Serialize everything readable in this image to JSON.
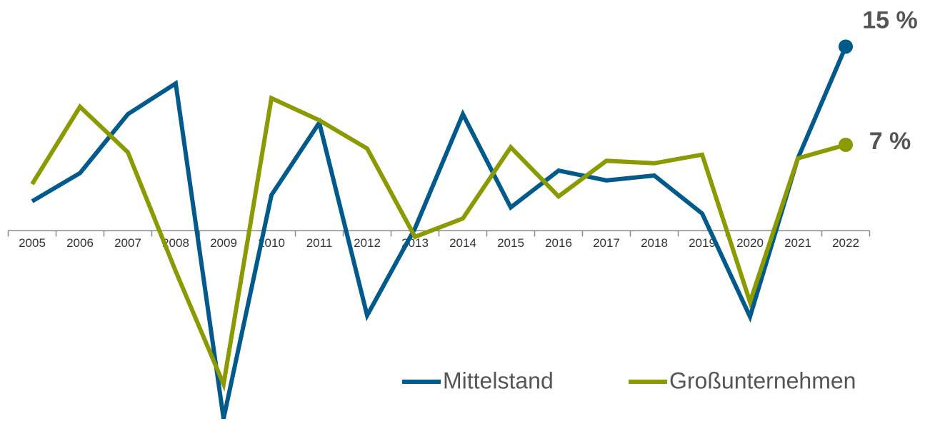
{
  "chart_data": {
    "type": "line",
    "categories": [
      "2005",
      "2006",
      "2007",
      "2008",
      "2009",
      "2010",
      "2011",
      "2012",
      "2013",
      "2014",
      "2015",
      "2016",
      "2017",
      "2018",
      "2019",
      "2020",
      "2021",
      "2022"
    ],
    "series": [
      {
        "name": "Mittelstand",
        "color": "#005b8c",
        "values": [
          2.4,
          4.7,
          9.5,
          12.0,
          -15.3,
          2.9,
          8.8,
          -6.9,
          0.2,
          9.5,
          1.9,
          4.9,
          4.1,
          4.5,
          1.4,
          -7.0,
          5.9,
          15
        ],
        "value_labels": [
          null,
          null,
          null,
          null,
          null,
          null,
          null,
          null,
          null,
          null,
          null,
          null,
          null,
          null,
          null,
          null,
          null,
          "15 %"
        ]
      },
      {
        "name": "Großunternehmen",
        "color": "#8a9a00",
        "values": [
          3.8,
          10.1,
          6.4,
          -3.3,
          -12.5,
          10.8,
          9.0,
          6.7,
          -0.5,
          1.0,
          6.8,
          2.8,
          5.7,
          5.5,
          6.2,
          -5.8,
          5.9,
          7
        ],
        "value_labels": [
          null,
          null,
          null,
          null,
          null,
          null,
          null,
          null,
          null,
          null,
          null,
          null,
          null,
          null,
          null,
          null,
          null,
          "7 %"
        ]
      }
    ],
    "ylim": [
      -15.5,
      18.8
    ],
    "legend": "bottom-right"
  }
}
